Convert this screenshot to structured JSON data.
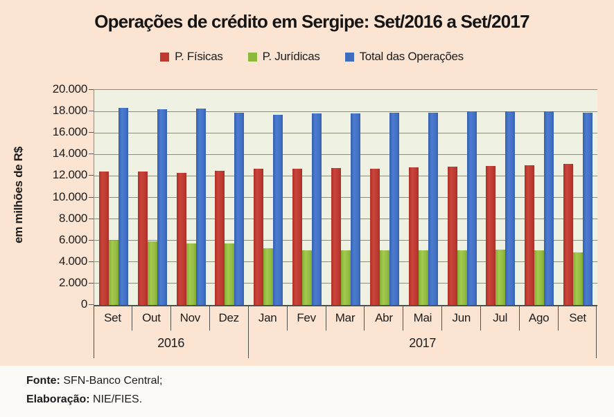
{
  "chart": {
    "title": "Operações de crédito em Sergipe: Set/2016 a Set/2017",
    "y_axis_title": "em milhões de R$"
  },
  "chart_data": {
    "type": "bar",
    "title": "Operações de crédito em Sergipe: Set/2016 a Set/2017",
    "xlabel": "",
    "ylabel": "em milhões de R$",
    "ylim": [
      0,
      20000
    ],
    "y_tick_step": 2000,
    "y_tick_labels": [
      "20.000",
      "18.000",
      "16.000",
      "14.000",
      "12.000",
      "10.000",
      "8.000",
      "6.000",
      "4.000",
      "2.000",
      "0"
    ],
    "grid": true,
    "legend_position": "top",
    "categories": [
      "Set",
      "Out",
      "Nov",
      "Dez",
      "Jan",
      "Fev",
      "Mar",
      "Abr",
      "Mai",
      "Jun",
      "Jul",
      "Ago",
      "Set"
    ],
    "year_groups": [
      {
        "label": "2016",
        "span": 4
      },
      {
        "label": "2017",
        "span": 9
      }
    ],
    "series": [
      {
        "name": "P. Físicas",
        "color": "#BE3A30",
        "values": [
          12400,
          12400,
          12300,
          12500,
          12650,
          12700,
          12750,
          12700,
          12800,
          12850,
          12900,
          13000,
          13100
        ]
      },
      {
        "name": "P. Jurídicas",
        "color": "#95BC42",
        "values": [
          5950,
          5900,
          5750,
          5700,
          5250,
          5050,
          5050,
          5050,
          5050,
          5050,
          5150,
          5050,
          4900
        ]
      },
      {
        "name": "Total das Operações",
        "color": "#4170C4",
        "values": [
          18300,
          18200,
          18250,
          17850,
          17700,
          17800,
          17800,
          17850,
          17900,
          18000,
          18000,
          18000,
          17900
        ]
      }
    ]
  },
  "colors": {
    "chart_background": "#FBE4D2",
    "plot_background": "#EFF1E2",
    "gridline": "#8B8E79",
    "axis_line": "#4F4F4C",
    "text": "#1c1c1c"
  },
  "footer": {
    "source_label": "Fonte:",
    "source_value": " SFN-Banco Central;",
    "elaboration_label": "Elaboração:",
    "elaboration_value": " NIE/FIES."
  }
}
